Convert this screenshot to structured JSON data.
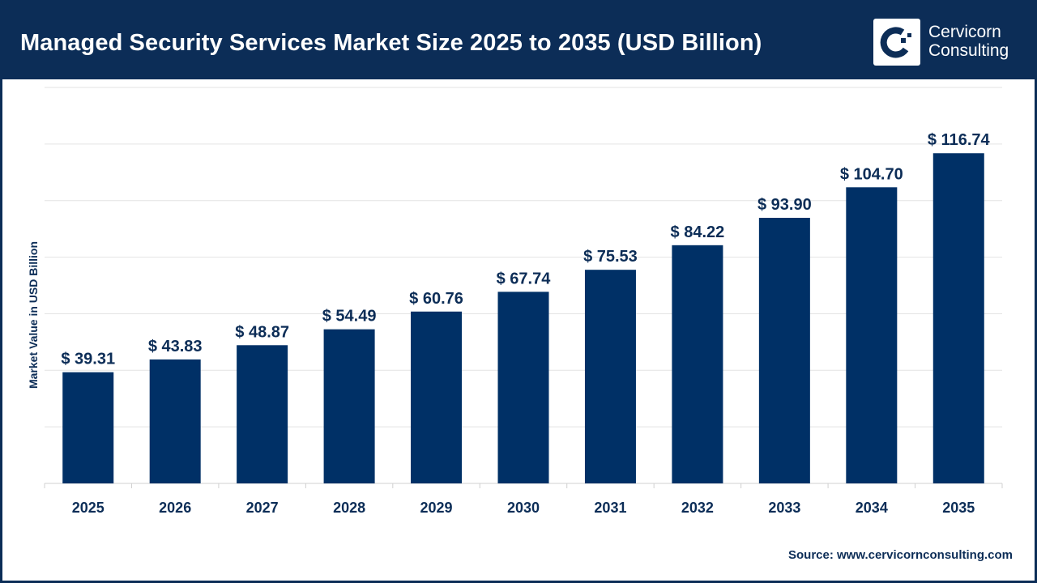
{
  "header": {
    "title": "Managed Security Services Market Size 2025 to 2035 (USD Billion)",
    "logo_text_line1": "Cervicorn",
    "logo_text_line2": "Consulting"
  },
  "source": "Source: www.cervicornconsulting.com",
  "colors": {
    "header": "#0c2d57",
    "bar": "#003066",
    "text": "#0c2d57"
  },
  "chart_data": {
    "type": "bar",
    "title": "Managed Security Services Market Size 2025 to 2035 (USD Billion)",
    "xlabel": "",
    "ylabel": "Market Value in USD Billion",
    "categories": [
      "2025",
      "2026",
      "2027",
      "2028",
      "2029",
      "2030",
      "2031",
      "2032",
      "2033",
      "2034",
      "2035"
    ],
    "values": [
      39.31,
      43.83,
      48.87,
      54.49,
      60.76,
      67.74,
      75.53,
      84.22,
      93.9,
      104.7,
      116.74
    ],
    "data_labels": [
      "$ 39.31",
      "$ 43.83",
      "$ 48.87",
      "$ 54.49",
      "$ 60.76",
      "$ 67.74",
      "$ 75.53",
      "$ 84.22",
      "$ 93.90",
      "$ 104.70",
      "$ 116.74"
    ],
    "ylim": [
      0,
      140
    ],
    "grid": true,
    "y_tick_labels_shown": false
  }
}
